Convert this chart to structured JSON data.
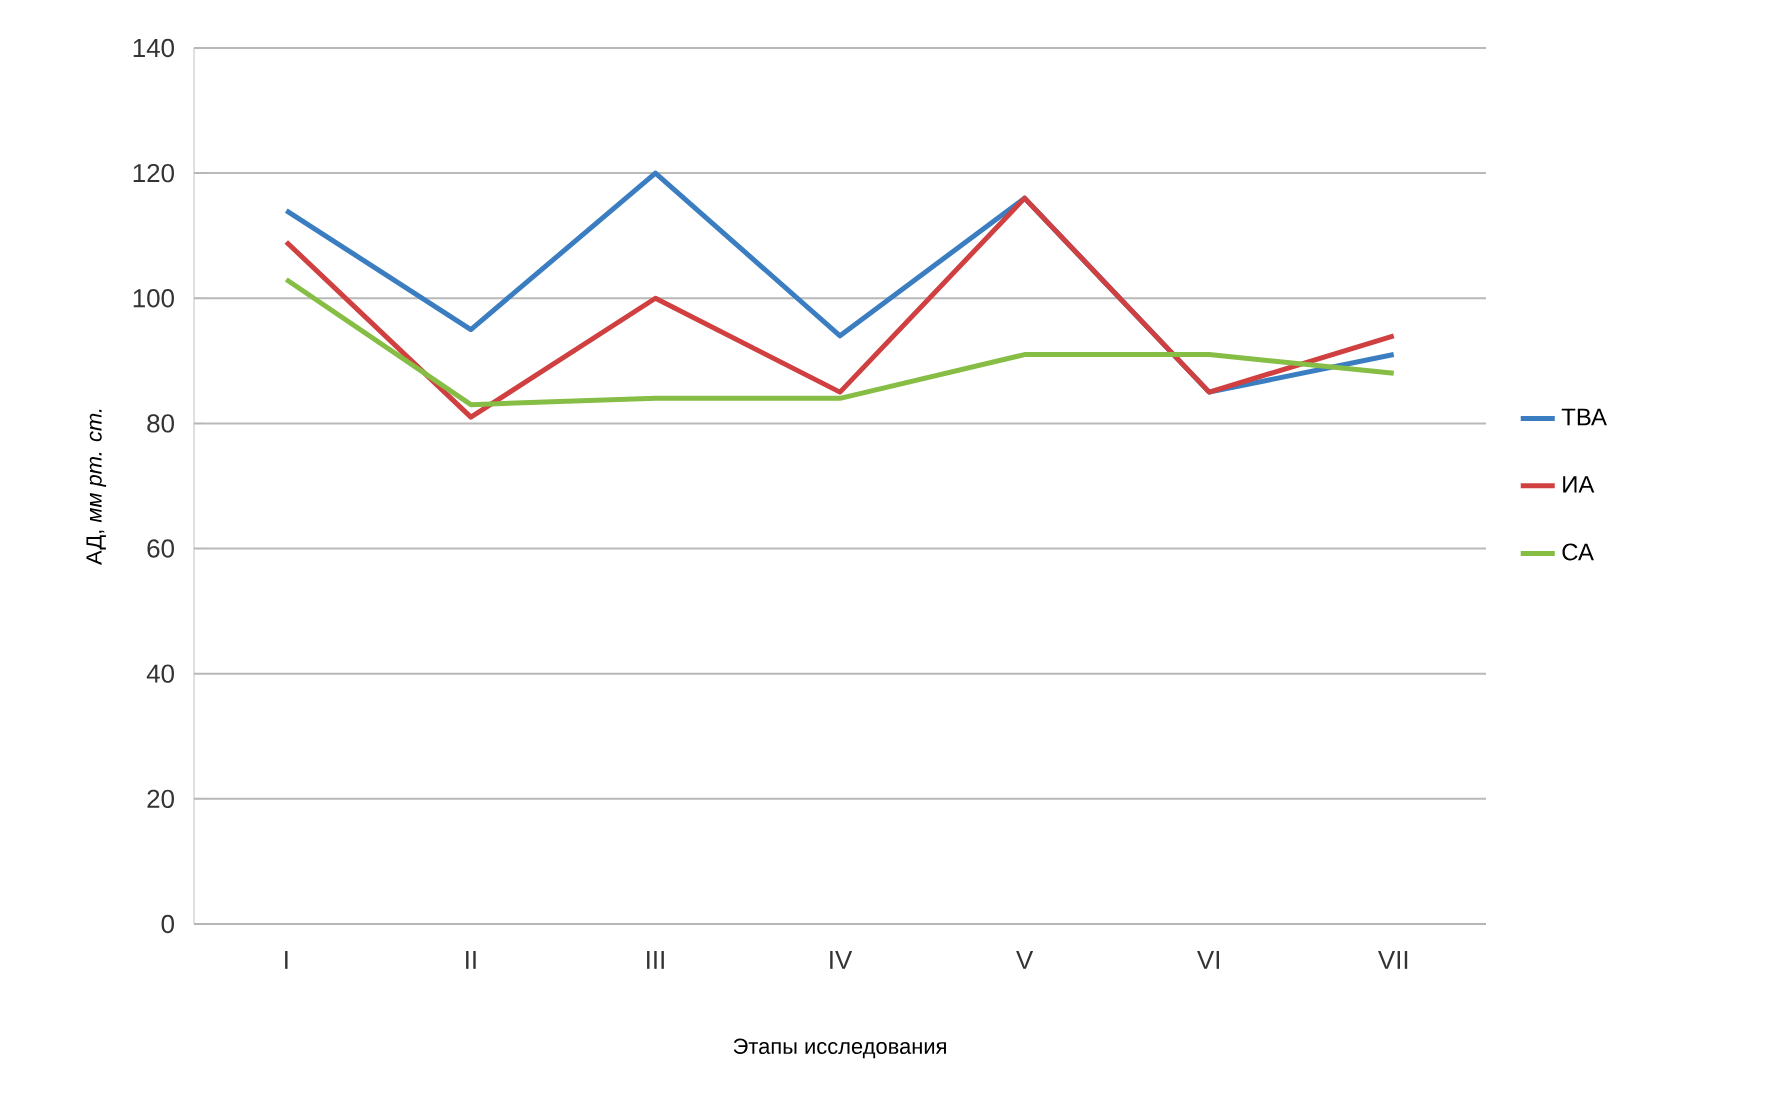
{
  "chart_data": {
    "type": "line",
    "xlabel": "Этапы исследования",
    "ylabel": "АД, *мм рт. ст.*",
    "categories": [
      "I",
      "II",
      "III",
      "IV",
      "V",
      "VI",
      "VII"
    ],
    "series": [
      {
        "name": "ТВА",
        "color": "#3a7dc0",
        "values": [
          114,
          95,
          120,
          94,
          116,
          85,
          91
        ]
      },
      {
        "name": "ИА",
        "color": "#d04040",
        "values": [
          109,
          81,
          100,
          85,
          116,
          85,
          94
        ]
      },
      {
        "name": "СА",
        "color": "#86bd45",
        "values": [
          103,
          83,
          84,
          84,
          91,
          91,
          88
        ]
      }
    ],
    "ylim": [
      0,
      140
    ],
    "yticks": [
      0,
      20,
      40,
      60,
      80,
      100,
      120,
      140
    ],
    "grid": "y",
    "legend": "right",
    "marker": "none",
    "line_style": "solid"
  }
}
